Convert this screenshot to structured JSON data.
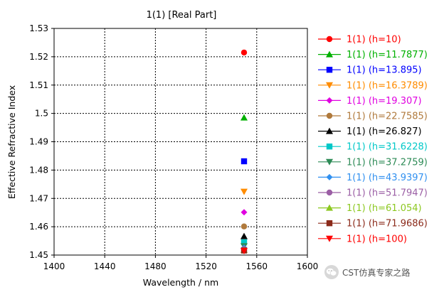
{
  "chart_data": {
    "type": "scatter",
    "title": "1(1) [Real Part]",
    "xlabel": "Wavelength / nm",
    "ylabel": "Effective Refractive Index",
    "xlim": [
      1400,
      1600
    ],
    "ylim": [
      1.45,
      1.53
    ],
    "x_ticks": [
      1400,
      1440,
      1480,
      1520,
      1560,
      1600
    ],
    "y_ticks": [
      1.45,
      1.46,
      1.47,
      1.48,
      1.49,
      1.5,
      1.51,
      1.52,
      1.53
    ],
    "y_tick_labels": [
      "1.45",
      "1.46",
      "1.47",
      "1.48",
      "1.49",
      "1.5",
      "1.51",
      "1.52",
      "1.53"
    ],
    "grid": true,
    "legend_position": "right",
    "series": [
      {
        "name": "1(1) (h=10)",
        "x": [
          1550
        ],
        "y": [
          1.5215
        ],
        "color": "#ff0000",
        "marker": "circle"
      },
      {
        "name": "1(1) (h=11.7877)",
        "x": [
          1550
        ],
        "y": [
          1.4985
        ],
        "color": "#00b000",
        "marker": "triangle-up"
      },
      {
        "name": "1(1) (h=13.895)",
        "x": [
          1550
        ],
        "y": [
          1.4831
        ],
        "color": "#0000ff",
        "marker": "square"
      },
      {
        "name": "1(1) (h=16.3789)",
        "x": [
          1550
        ],
        "y": [
          1.4724
        ],
        "color": "#ff8c00",
        "marker": "triangle-down"
      },
      {
        "name": "1(1) (h=19.307)",
        "x": [
          1550
        ],
        "y": [
          1.4651
        ],
        "color": "#e000e0",
        "marker": "diamond"
      },
      {
        "name": "1(1) (h=22.7585)",
        "x": [
          1550
        ],
        "y": [
          1.4601
        ],
        "color": "#b07a3c",
        "marker": "circle"
      },
      {
        "name": "1(1) (h=26.827)",
        "x": [
          1550
        ],
        "y": [
          1.4566
        ],
        "color": "#000000",
        "marker": "triangle-up"
      },
      {
        "name": "1(1) (h=31.6228)",
        "x": [
          1550
        ],
        "y": [
          1.4545
        ],
        "color": "#00c8c8",
        "marker": "square"
      },
      {
        "name": "1(1) (h=37.2759)",
        "x": [
          1550
        ],
        "y": [
          1.4532
        ],
        "color": "#2e8b57",
        "marker": "triangle-down"
      },
      {
        "name": "1(1) (h=43.9397)",
        "x": [
          1550
        ],
        "y": [
          1.4526
        ],
        "color": "#3090f0",
        "marker": "diamond"
      },
      {
        "name": "1(1) (h=51.7947)",
        "x": [
          1550
        ],
        "y": [
          1.4521
        ],
        "color": "#9b5fa5",
        "marker": "circle"
      },
      {
        "name": "1(1) (h=61.054)",
        "x": [
          1550
        ],
        "y": [
          1.4518
        ],
        "color": "#8cc820",
        "marker": "triangle-up"
      },
      {
        "name": "1(1) (h=71.9686)",
        "x": [
          1550
        ],
        "y": [
          1.4516
        ],
        "color": "#8b2a1a",
        "marker": "square"
      },
      {
        "name": "1(1) (h=100)",
        "x": [
          1550
        ],
        "y": [
          1.4515
        ],
        "color": "#ff0000",
        "marker": "triangle-down"
      }
    ]
  },
  "watermark": {
    "text": "CST仿真专家之路",
    "icon": "wechat-icon"
  }
}
